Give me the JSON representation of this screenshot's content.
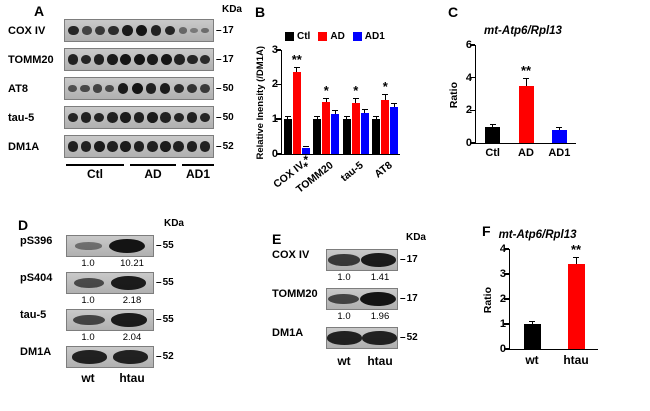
{
  "panels": {
    "A": {
      "label": "A",
      "kda_header": "KDa",
      "rows": [
        {
          "protein": "COX IV",
          "marker": "17",
          "intensities": [
            0.85,
            0.6,
            0.7,
            0.8,
            0.95,
            1,
            0.9,
            0.85,
            0.3,
            0.15,
            0.25
          ]
        },
        {
          "protein": "TOMM20",
          "marker": "17",
          "intensities": [
            0.9,
            0.85,
            0.9,
            0.95,
            1,
            1,
            0.95,
            1,
            0.9,
            0.85,
            0.8
          ]
        },
        {
          "protein": "AT8",
          "marker": "50",
          "intensities": [
            0.5,
            0.55,
            0.6,
            0.55,
            0.95,
            1,
            0.9,
            0.95,
            0.8,
            0.75,
            0.7
          ]
        },
        {
          "protein": "tau-5",
          "marker": "50",
          "intensities": [
            0.85,
            0.9,
            0.85,
            0.9,
            0.95,
            0.9,
            0.95,
            0.9,
            0.85,
            0.9,
            0.85
          ]
        },
        {
          "protein": "DM1A",
          "marker": "52",
          "intensities": [
            0.9,
            0.9,
            0.95,
            0.9,
            0.95,
            0.9,
            0.9,
            0.95,
            0.9,
            0.9,
            0.9
          ]
        }
      ],
      "groups": [
        "Ctl",
        "AD",
        "AD1"
      ]
    },
    "B": {
      "label": "B"
    },
    "C": {
      "label": "C"
    },
    "D": {
      "label": "D",
      "kda_header": "KDa",
      "rows": [
        {
          "protein": "pS396",
          "marker": "55",
          "values": [
            "1.0",
            "10.21"
          ],
          "intensities": [
            0.25,
            1
          ]
        },
        {
          "protein": "pS404",
          "marker": "55",
          "values": [
            "1.0",
            "2.18"
          ],
          "intensities": [
            0.55,
            0.95
          ]
        },
        {
          "protein": "tau-5",
          "marker": "55",
          "values": [
            "1.0",
            "2.04"
          ],
          "intensities": [
            0.6,
            0.95
          ]
        },
        {
          "protein": "DM1A",
          "marker": "52",
          "intensities": [
            0.9,
            0.9
          ]
        }
      ],
      "lanes": [
        "wt",
        "htau"
      ]
    },
    "E": {
      "label": "E",
      "kda_header": "KDa",
      "rows": [
        {
          "protein": "COX IV",
          "marker": "17",
          "values": [
            "1.0",
            "1.41"
          ],
          "intensities": [
            0.7,
            0.95
          ]
        },
        {
          "protein": "TOMM20",
          "marker": "17",
          "values": [
            "1.0",
            "1.96"
          ],
          "intensities": [
            0.6,
            1
          ]
        },
        {
          "protein": "DM1A",
          "marker": "52",
          "intensities": [
            0.9,
            0.9
          ]
        }
      ],
      "lanes": [
        "wt",
        "htau"
      ]
    },
    "F": {
      "label": "F"
    }
  },
  "chart_data": [
    {
      "type": "bar",
      "panel": "B",
      "title": "",
      "ylabel": "Relative Inensity (/DM1A)",
      "ylim": [
        0,
        3
      ],
      "yticks": [
        0,
        1,
        2,
        3
      ],
      "categories": [
        "COX IV",
        "TOMM20",
        "tau-5",
        "AT8"
      ],
      "series": [
        {
          "name": "Ctl",
          "color": "#000000",
          "values": [
            1.0,
            1.0,
            1.0,
            1.0
          ],
          "errors": [
            0.1,
            0.1,
            0.1,
            0.1
          ],
          "sig": [
            "",
            "",
            "",
            ""
          ],
          "sig_below": [
            "",
            "",
            "",
            ""
          ]
        },
        {
          "name": "AD",
          "color": "#ff0000",
          "values": [
            2.35,
            1.5,
            1.45,
            1.55
          ],
          "errors": [
            0.15,
            0.12,
            0.15,
            0.18
          ],
          "sig": [
            "**",
            "*",
            "*",
            "*"
          ],
          "sig_below": [
            "",
            "",
            "",
            ""
          ]
        },
        {
          "name": "AD1",
          "color": "#0000ff",
          "values": [
            0.18,
            1.15,
            1.18,
            1.35
          ],
          "errors": [
            0.05,
            0.1,
            0.1,
            0.12
          ],
          "sig": [
            "",
            "",
            "",
            ""
          ],
          "sig_below": [
            "**",
            "",
            "",
            ""
          ]
        }
      ],
      "legend": true,
      "legend_position": "top",
      "rotate_xlabels": true,
      "grid": false
    },
    {
      "type": "bar",
      "panel": "C",
      "title": "mt-Atp6/Rpl13",
      "ylabel": "Ratio",
      "ylim": [
        0,
        6
      ],
      "yticks": [
        0,
        2,
        4,
        6
      ],
      "categories": [
        "Ctl",
        "AD",
        "AD1"
      ],
      "series": [
        {
          "name": "",
          "colors": [
            "#000000",
            "#ff0000",
            "#0000ff"
          ],
          "values": [
            1.0,
            3.5,
            0.8
          ],
          "errors": [
            0.15,
            0.5,
            0.15
          ],
          "sig": [
            "",
            "**",
            ""
          ],
          "sig_below": [
            "",
            "",
            ""
          ]
        }
      ],
      "legend": false,
      "rotate_xlabels": false,
      "grid": false
    },
    {
      "type": "bar",
      "panel": "F",
      "title": "mt-Atp6/Rpl13",
      "ylabel": "Ratio",
      "ylim": [
        0,
        4
      ],
      "yticks": [
        0,
        1,
        2,
        3,
        4
      ],
      "categories": [
        "wt",
        "htau"
      ],
      "series": [
        {
          "name": "",
          "colors": [
            "#000000",
            "#ff0000"
          ],
          "values": [
            1.0,
            3.4
          ],
          "errors": [
            0.12,
            0.3
          ],
          "sig": [
            "",
            "**"
          ],
          "sig_below": [
            "",
            ""
          ]
        }
      ],
      "legend": false,
      "rotate_xlabels": false,
      "grid": false
    }
  ]
}
